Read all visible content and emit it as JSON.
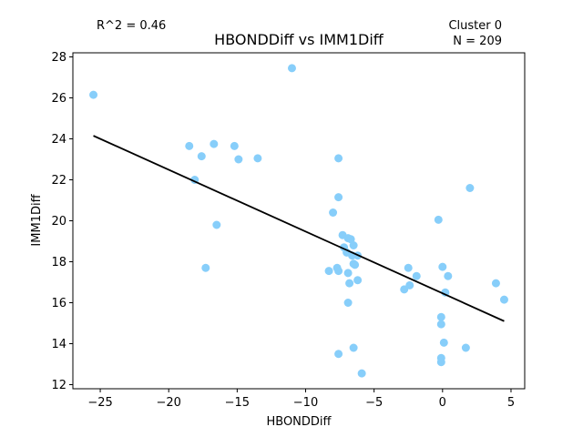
{
  "chart_data": {
    "type": "scatter",
    "title": "HBONDDiff vs IMM1Diff",
    "xlabel": "HBONDDiff",
    "ylabel": "IMM1Diff",
    "xlim": [
      -27,
      6
    ],
    "ylim": [
      11.8,
      28.2
    ],
    "xticks": [
      -25,
      -20,
      -15,
      -10,
      -5,
      0,
      5
    ],
    "xtick_labels": [
      "−25",
      "−20",
      "−15",
      "−10",
      "−5",
      "0",
      "5"
    ],
    "yticks": [
      12,
      14,
      16,
      18,
      20,
      22,
      24,
      26,
      28
    ],
    "ytick_labels": [
      "12",
      "14",
      "16",
      "18",
      "20",
      "22",
      "24",
      "26",
      "28"
    ],
    "grid": false,
    "point_color": "#87cefa",
    "line_color": "#000000",
    "annotations": {
      "r2": "R^2 = 0.46",
      "cluster": "Cluster 0",
      "n": "N = 209"
    },
    "fit_line": {
      "x": [
        -25.5,
        4.5
      ],
      "y": [
        24.15,
        15.1
      ]
    },
    "points": [
      {
        "x": -25.5,
        "y": 26.15
      },
      {
        "x": -11.0,
        "y": 27.45
      },
      {
        "x": -18.5,
        "y": 23.65
      },
      {
        "x": -16.7,
        "y": 23.75
      },
      {
        "x": -15.2,
        "y": 23.65
      },
      {
        "x": -17.6,
        "y": 23.15
      },
      {
        "x": -14.9,
        "y": 23.0
      },
      {
        "x": -13.5,
        "y": 23.05
      },
      {
        "x": -7.6,
        "y": 23.05
      },
      {
        "x": -18.1,
        "y": 22.0
      },
      {
        "x": -7.6,
        "y": 21.15
      },
      {
        "x": -16.5,
        "y": 19.8
      },
      {
        "x": -17.3,
        "y": 17.7
      },
      {
        "x": -8.0,
        "y": 20.4
      },
      {
        "x": -7.3,
        "y": 19.3
      },
      {
        "x": -6.9,
        "y": 19.15
      },
      {
        "x": -6.7,
        "y": 19.1
      },
      {
        "x": -6.5,
        "y": 18.8
      },
      {
        "x": -7.2,
        "y": 18.7
      },
      {
        "x": -7.0,
        "y": 18.45
      },
      {
        "x": -6.6,
        "y": 18.3
      },
      {
        "x": -6.2,
        "y": 18.3
      },
      {
        "x": -6.5,
        "y": 17.9
      },
      {
        "x": -6.4,
        "y": 17.85
      },
      {
        "x": -8.3,
        "y": 17.55
      },
      {
        "x": -7.7,
        "y": 17.7
      },
      {
        "x": -7.6,
        "y": 17.55
      },
      {
        "x": -6.9,
        "y": 17.45
      },
      {
        "x": -6.2,
        "y": 17.1
      },
      {
        "x": -6.8,
        "y": 16.95
      },
      {
        "x": -6.9,
        "y": 16.0
      },
      {
        "x": -2.5,
        "y": 17.7
      },
      {
        "x": -1.9,
        "y": 17.3
      },
      {
        "x": -2.4,
        "y": 16.85
      },
      {
        "x": -2.8,
        "y": 16.65
      },
      {
        "x": -0.3,
        "y": 20.05
      },
      {
        "x": 0.0,
        "y": 17.75
      },
      {
        "x": 0.4,
        "y": 17.3
      },
      {
        "x": 0.2,
        "y": 16.5
      },
      {
        "x": 2.0,
        "y": 21.6
      },
      {
        "x": 3.9,
        "y": 16.95
      },
      {
        "x": 4.5,
        "y": 16.15
      },
      {
        "x": -0.1,
        "y": 15.3
      },
      {
        "x": -0.1,
        "y": 14.95
      },
      {
        "x": 0.1,
        "y": 14.05
      },
      {
        "x": 1.7,
        "y": 13.8
      },
      {
        "x": -6.5,
        "y": 13.8
      },
      {
        "x": -7.6,
        "y": 13.5
      },
      {
        "x": -0.1,
        "y": 13.3
      },
      {
        "x": -0.1,
        "y": 13.1
      },
      {
        "x": -5.9,
        "y": 12.55
      }
    ]
  }
}
